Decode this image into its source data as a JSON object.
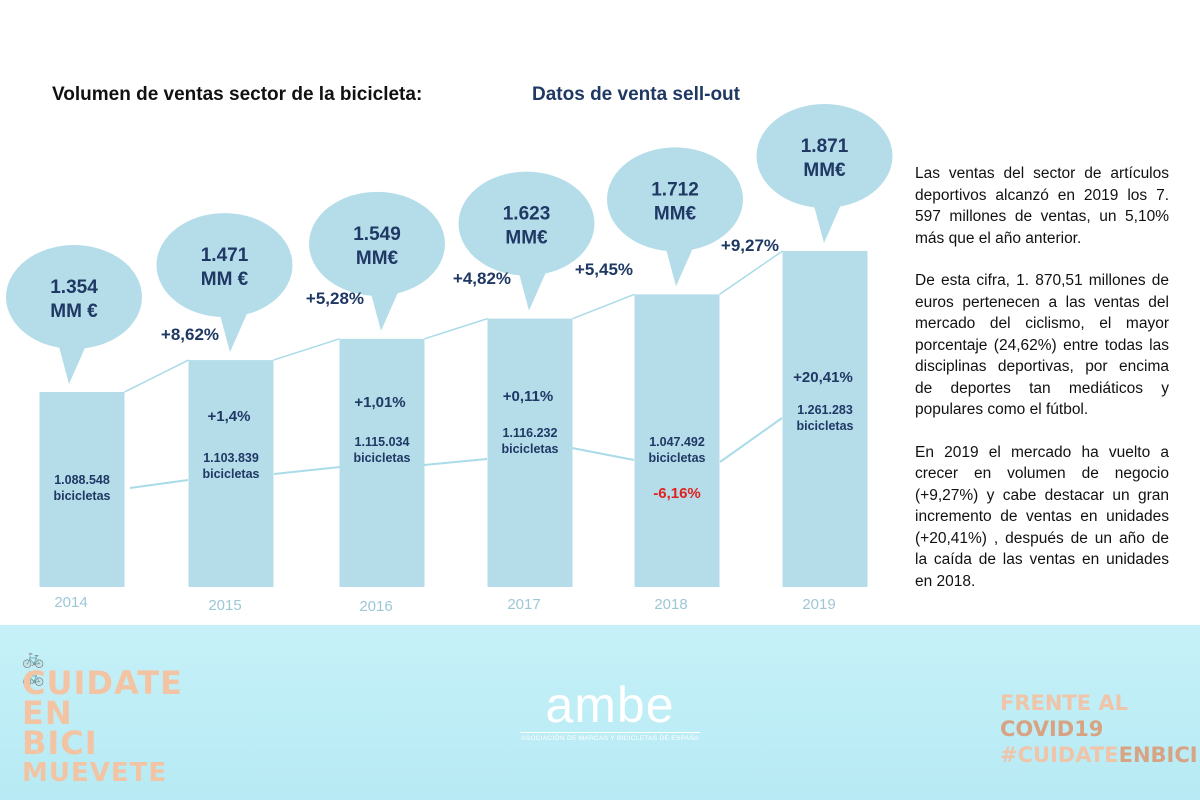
{
  "header": {
    "title": "Volumen de ventas sector de la bicicleta:",
    "subtitle": "Datos de venta sell-out"
  },
  "colors": {
    "bar": "#b4dde9",
    "bubble": "#b4dde9",
    "value_text": "#1f3864",
    "negative": "#e0211f",
    "year_label": "#9ec7d6",
    "line": "#aadbe8"
  },
  "chart_data": {
    "type": "bar",
    "categories": [
      "2014",
      "2015",
      "2016",
      "2017",
      "2018",
      "2019"
    ],
    "series": [
      {
        "values": [
          1.354,
          1.471,
          1.549,
          1.623,
          1.712,
          1.871
        ]
      },
      {
        "values": [
          1088548,
          1103839,
          1115034,
          1116232,
          1047492,
          1261283
        ]
      }
    ],
    "value_labels": [
      [
        "1.354",
        "MM €"
      ],
      [
        "1.471",
        "MM €"
      ],
      [
        "1.549",
        "MM€"
      ],
      [
        "1.623",
        "MM€"
      ],
      [
        "1.712",
        "MM€"
      ],
      [
        "1.871",
        "MM€"
      ]
    ],
    "value_growth": [
      "",
      "+8,62%",
      "+5,28%",
      "+4,82%",
      "+5,45%",
      "+9,27%"
    ],
    "unit_labels": [
      "1.088.548",
      "1.103.839",
      "1.115.034",
      "1.116.232",
      "1.047.492",
      "1.261.283"
    ],
    "unit_word": "bicicletas",
    "unit_growth": [
      "",
      "+1,4%",
      "+1,01%",
      "+0,11%",
      "-6,16%",
      "+20,41%"
    ],
    "unit_growth_negative": [
      false,
      false,
      false,
      false,
      true,
      false
    ],
    "ylim": [
      0,
      1.871
    ],
    "grid": false
  },
  "side_text": {
    "paragraphs": [
      "Las ventas del sector de artículos deportivos alcanzó en 2019 los 7. 597 millones de ventas, un 5,10% más que el año anterior.",
      "De esta cifra, 1. 870,51 millones de euros pertenecen a las ventas del mercado del ciclismo, el mayor porcentaje (24,62%) entre todas las disciplinas deportivas, por encima de deportes tan mediáticos y populares como el fútbol.",
      "En 2019 el mercado ha vuelto a crecer en volumen de negocio (+9,27%) y cabe destacar un gran incremento de ventas en unidades (+20,41%) , después de un año de la caída de las ventas en unidades en 2018."
    ]
  },
  "footer": {
    "left_logo": [
      "CUIDATE",
      "EN BICI",
      "MUEVETE"
    ],
    "left_logo_icons": [
      "bicycle-icon",
      "bicycle-icon"
    ],
    "center_logo": "ambe",
    "center_logo_sub": "ASOCIACIÓN DE MARCAS Y BICICLETAS DE ESPAÑA",
    "right_logo": [
      "FRENTE AL",
      "COVID19",
      "#CUIDATE",
      "ENBICI"
    ]
  }
}
